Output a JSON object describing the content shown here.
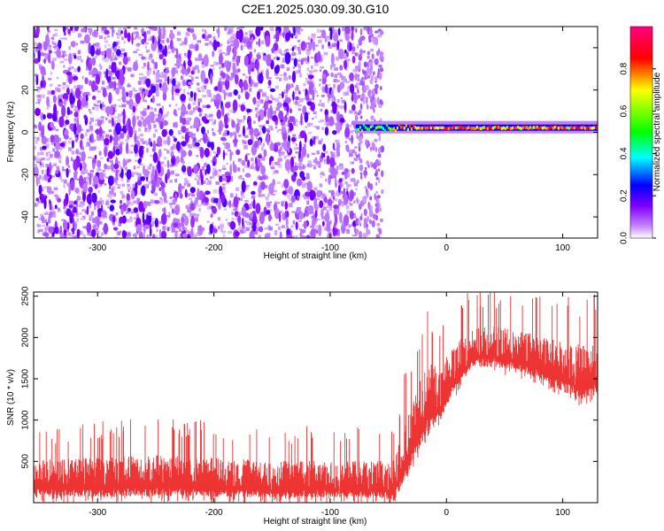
{
  "title": "C2E1.2025.030.09.30.G10",
  "chart_data": [
    {
      "type": "heatmap",
      "title": "C2E1.2025.030.09.30.G10",
      "xlabel": "Height of straight line (km)",
      "ylabel": "Frequency (Hz)",
      "xlim": [
        -355,
        130
      ],
      "ylim": [
        -50,
        50
      ],
      "xticks": [
        -300,
        -200,
        -100,
        0,
        100
      ],
      "yticks": [
        -40,
        -20,
        0,
        20,
        40
      ],
      "colorbar": {
        "label": "Normalized spectral amplitude",
        "range": [
          0,
          1
        ],
        "ticks": [
          0.0,
          0.2,
          0.4,
          0.6,
          0.8
        ],
        "colormap": [
          "#ffffff",
          "#8000ff",
          "#0000ff",
          "#00ffff",
          "#00ff00",
          "#ffff00",
          "#ff0000",
          "#ff0080"
        ]
      },
      "regions": [
        {
          "x_range": [
            -355,
            -78
          ],
          "description_level": 0.15
        },
        {
          "x_range": [
            -78,
            -55
          ],
          "description_level": 0.05
        },
        {
          "x_range": [
            -78,
            130
          ],
          "signal_frequency_hz": 2,
          "signal_level": 0.85
        }
      ]
    },
    {
      "type": "line",
      "xlabel": "Height of straight line (km)",
      "ylabel": "SNR (10 * v/v)",
      "xlim": [
        -355,
        130
      ],
      "ylim": [
        0,
        2550
      ],
      "xticks": [
        -300,
        -200,
        -100,
        0,
        100
      ],
      "yticks": [
        500,
        1000,
        1500,
        2000,
        2500
      ],
      "color": "#ee3333",
      "series": [
        {
          "x": [
            -355,
            -300,
            -250,
            -200,
            -150,
            -100,
            -60,
            -45,
            -35,
            -25,
            -15,
            -5,
            5,
            15,
            25,
            40,
            60,
            80,
            100,
            115,
            130
          ],
          "y_min": [
            80,
            70,
            80,
            70,
            60,
            60,
            60,
            20,
            300,
            600,
            900,
            1000,
            1300,
            1500,
            1650,
            1650,
            1600,
            1500,
            1350,
            1250,
            1300
          ],
          "y_max": [
            700,
            750,
            800,
            750,
            700,
            700,
            700,
            750,
            1300,
            1800,
            2000,
            2000,
            2100,
            2250,
            2350,
            2350,
            2300,
            2250,
            2200,
            2200,
            2350
          ]
        }
      ]
    }
  ]
}
